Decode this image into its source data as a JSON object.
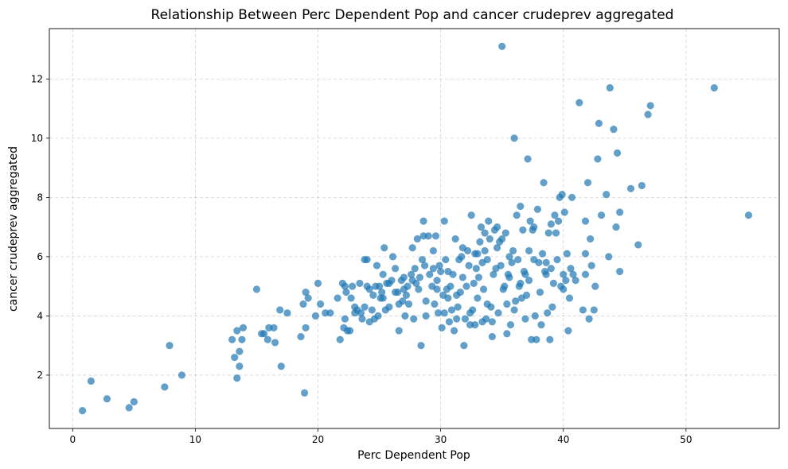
{
  "chart_data": {
    "type": "scatter",
    "title": "Relationship Between Perc Dependent Pop and cancer crudeprev aggregated",
    "xlabel": "Perc Dependent Pop",
    "ylabel": "cancer crudeprev aggregated",
    "xlim": [
      -1.9,
      57.6
    ],
    "ylim": [
      0.2,
      13.7
    ],
    "x_ticks": [
      0,
      10,
      20,
      30,
      40,
      50
    ],
    "y_ticks": [
      2,
      4,
      6,
      8,
      10,
      12
    ],
    "grid": true,
    "color": "#1f77b4",
    "points": [
      [
        0.8,
        0.8
      ],
      [
        1.5,
        1.8
      ],
      [
        2.8,
        1.2
      ],
      [
        4.6,
        0.9
      ],
      [
        5.0,
        1.1
      ],
      [
        7.5,
        1.6
      ],
      [
        7.9,
        3.0
      ],
      [
        8.9,
        2.0
      ],
      [
        13.0,
        3.2
      ],
      [
        13.2,
        2.6
      ],
      [
        13.4,
        3.5
      ],
      [
        13.4,
        1.9
      ],
      [
        13.6,
        2.8
      ],
      [
        13.6,
        2.3
      ],
      [
        13.8,
        3.2
      ],
      [
        13.9,
        3.6
      ],
      [
        15.0,
        4.9
      ],
      [
        15.4,
        3.4
      ],
      [
        15.6,
        3.4
      ],
      [
        15.9,
        3.2
      ],
      [
        16.0,
        3.6
      ],
      [
        16.4,
        3.6
      ],
      [
        16.5,
        3.1
      ],
      [
        16.9,
        4.2
      ],
      [
        17.0,
        2.3
      ],
      [
        17.5,
        4.1
      ],
      [
        18.6,
        3.3
      ],
      [
        18.8,
        4.4
      ],
      [
        18.9,
        1.4
      ],
      [
        19.0,
        3.6
      ],
      [
        19.0,
        4.8
      ],
      [
        19.2,
        4.6
      ],
      [
        19.8,
        4.0
      ],
      [
        20.0,
        5.1
      ],
      [
        20.2,
        4.4
      ],
      [
        20.6,
        4.1
      ],
      [
        21.0,
        4.1
      ],
      [
        21.6,
        4.6
      ],
      [
        21.8,
        3.2
      ],
      [
        22.0,
        5.1
      ],
      [
        22.1,
        3.6
      ],
      [
        22.2,
        3.9
      ],
      [
        22.3,
        4.8
      ],
      [
        22.4,
        3.5
      ],
      [
        22.6,
        3.5
      ],
      [
        22.7,
        4.6
      ],
      [
        22.8,
        5.0
      ],
      [
        23.0,
        4.1
      ],
      [
        23.2,
        4.2
      ],
      [
        23.4,
        5.1
      ],
      [
        23.6,
        3.9
      ],
      [
        23.8,
        4.3
      ],
      [
        23.8,
        5.9
      ],
      [
        24.0,
        5.9
      ],
      [
        24.2,
        3.8
      ],
      [
        24.4,
        4.2
      ],
      [
        24.5,
        4.7
      ],
      [
        24.6,
        3.9
      ],
      [
        24.7,
        5.0
      ],
      [
        24.8,
        5.7
      ],
      [
        24.9,
        4.0
      ],
      [
        25.0,
        5.0
      ],
      [
        25.1,
        4.6
      ],
      [
        25.2,
        4.8
      ],
      [
        25.3,
        5.4
      ],
      [
        25.4,
        6.3
      ],
      [
        25.5,
        4.2
      ],
      [
        25.6,
        5.1
      ],
      [
        25.8,
        4.3
      ],
      [
        26.0,
        5.2
      ],
      [
        26.1,
        6.0
      ],
      [
        26.3,
        4.8
      ],
      [
        26.5,
        4.8
      ],
      [
        26.6,
        3.5
      ],
      [
        26.8,
        5.2
      ],
      [
        26.9,
        4.5
      ],
      [
        27.0,
        5.3
      ],
      [
        27.1,
        4.0
      ],
      [
        27.2,
        4.7
      ],
      [
        27.3,
        5.0
      ],
      [
        27.4,
        4.4
      ],
      [
        27.6,
        5.4
      ],
      [
        27.7,
        6.3
      ],
      [
        27.8,
        3.9
      ],
      [
        27.9,
        5.6
      ],
      [
        28.0,
        5.1
      ],
      [
        28.1,
        6.6
      ],
      [
        28.2,
        4.9
      ],
      [
        28.3,
        5.3
      ],
      [
        28.4,
        3.0
      ],
      [
        28.5,
        5.9
      ],
      [
        28.6,
        6.7
      ],
      [
        28.6,
        7.2
      ],
      [
        28.7,
        5.7
      ],
      [
        28.8,
        4.0
      ],
      [
        29.0,
        6.7
      ],
      [
        29.1,
        5.4
      ],
      [
        29.3,
        5.0
      ],
      [
        29.4,
        6.2
      ],
      [
        29.5,
        4.4
      ],
      [
        29.6,
        6.7
      ],
      [
        29.7,
        4.9
      ],
      [
        29.8,
        4.1
      ],
      [
        29.9,
        5.7
      ],
      [
        30.0,
        5.5
      ],
      [
        30.1,
        3.6
      ],
      [
        30.2,
        4.7
      ],
      [
        30.3,
        4.1
      ],
      [
        30.3,
        7.2
      ],
      [
        30.4,
        5.9
      ],
      [
        30.5,
        4.9
      ],
      [
        30.6,
        4.6
      ],
      [
        30.7,
        3.8
      ],
      [
        30.8,
        5.0
      ],
      [
        30.9,
        4.2
      ],
      [
        31.0,
        5.4
      ],
      [
        31.1,
        3.5
      ],
      [
        31.2,
        6.6
      ],
      [
        31.3,
        3.9
      ],
      [
        31.4,
        4.3
      ],
      [
        31.5,
        5.9
      ],
      [
        31.6,
        4.8
      ],
      [
        31.7,
        6.0
      ],
      [
        31.8,
        5.3
      ],
      [
        31.9,
        3.0
      ],
      [
        32.0,
        3.9
      ],
      [
        32.1,
        5.0
      ],
      [
        32.2,
        6.2
      ],
      [
        32.3,
        5.7
      ],
      [
        32.4,
        3.7
      ],
      [
        32.5,
        7.4
      ],
      [
        32.6,
        4.2
      ],
      [
        32.7,
        5.1
      ],
      [
        32.8,
        6.1
      ],
      [
        32.9,
        5.6
      ],
      [
        33.0,
        4.6
      ],
      [
        33.1,
        5.3
      ],
      [
        33.2,
        6.5
      ],
      [
        33.3,
        7.0
      ],
      [
        33.4,
        5.8
      ],
      [
        33.5,
        4.9
      ],
      [
        33.6,
        6.8
      ],
      [
        33.6,
        6.2
      ],
      [
        33.7,
        3.9
      ],
      [
        33.8,
        5.9
      ],
      [
        33.9,
        7.2
      ],
      [
        34.0,
        6.6
      ],
      [
        34.1,
        4.3
      ],
      [
        34.2,
        3.8
      ],
      [
        34.3,
        5.4
      ],
      [
        34.4,
        6.9
      ],
      [
        34.5,
        5.6
      ],
      [
        34.6,
        7.0
      ],
      [
        34.7,
        4.1
      ],
      [
        34.8,
        6.5
      ],
      [
        34.9,
        5.7
      ],
      [
        35.0,
        13.1
      ],
      [
        35.1,
        4.9
      ],
      [
        35.2,
        5.0
      ],
      [
        35.3,
        6.8
      ],
      [
        35.4,
        4.4
      ],
      [
        35.5,
        5.4
      ],
      [
        35.6,
        6.0
      ],
      [
        35.7,
        3.7
      ],
      [
        35.8,
        5.8
      ],
      [
        35.9,
        6.2
      ],
      [
        36.0,
        10.0
      ],
      [
        36.1,
        4.5
      ],
      [
        36.2,
        7.4
      ],
      [
        36.3,
        5.9
      ],
      [
        36.4,
        5.0
      ],
      [
        36.5,
        7.7
      ],
      [
        36.6,
        4.6
      ],
      [
        36.7,
        6.9
      ],
      [
        36.8,
        5.5
      ],
      [
        36.9,
        3.9
      ],
      [
        37.0,
        4.7
      ],
      [
        37.1,
        9.3
      ],
      [
        37.2,
        5.2
      ],
      [
        37.3,
        7.2
      ],
      [
        37.4,
        3.2
      ],
      [
        37.5,
        6.9
      ],
      [
        37.6,
        5.9
      ],
      [
        37.7,
        4.0
      ],
      [
        37.8,
        3.2
      ],
      [
        37.9,
        7.6
      ],
      [
        38.0,
        5.8
      ],
      [
        38.1,
        4.8
      ],
      [
        38.2,
        3.7
      ],
      [
        38.3,
        6.1
      ],
      [
        38.4,
        8.5
      ],
      [
        38.5,
        5.5
      ],
      [
        38.6,
        5.8
      ],
      [
        38.7,
        4.1
      ],
      [
        38.8,
        6.8
      ],
      [
        38.9,
        3.2
      ],
      [
        39.0,
        7.1
      ],
      [
        39.1,
        4.3
      ],
      [
        39.2,
        5.1
      ],
      [
        39.3,
        7.4
      ],
      [
        39.4,
        6.8
      ],
      [
        39.5,
        5.9
      ],
      [
        39.6,
        7.2
      ],
      [
        39.7,
        8.0
      ],
      [
        39.8,
        5.0
      ],
      [
        39.9,
        8.1
      ],
      [
        40.0,
        5.4
      ],
      [
        40.1,
        7.5
      ],
      [
        40.2,
        5.2
      ],
      [
        40.3,
        6.1
      ],
      [
        40.4,
        3.5
      ],
      [
        40.5,
        4.6
      ],
      [
        40.6,
        5.6
      ],
      [
        40.7,
        8.0
      ],
      [
        40.8,
        5.4
      ],
      [
        41.0,
        5.2
      ],
      [
        41.3,
        11.2
      ],
      [
        41.6,
        4.2
      ],
      [
        41.8,
        7.2
      ],
      [
        41.8,
        6.1
      ],
      [
        42.0,
        8.5
      ],
      [
        42.1,
        3.9
      ],
      [
        42.2,
        6.6
      ],
      [
        42.3,
        5.7
      ],
      [
        42.5,
        4.2
      ],
      [
        42.8,
        9.3
      ],
      [
        42.9,
        10.5
      ],
      [
        43.1,
        7.4
      ],
      [
        43.5,
        8.1
      ],
      [
        43.8,
        11.7
      ],
      [
        44.1,
        10.3
      ],
      [
        44.3,
        7.0
      ],
      [
        44.4,
        9.5
      ],
      [
        44.6,
        7.5
      ],
      [
        44.6,
        5.5
      ],
      [
        45.5,
        8.3
      ],
      [
        46.1,
        6.4
      ],
      [
        46.4,
        8.4
      ],
      [
        46.9,
        10.8
      ],
      [
        47.1,
        11.1
      ],
      [
        52.3,
        11.7
      ],
      [
        55.1,
        7.4
      ],
      [
        27.0,
        4.9
      ],
      [
        26.3,
        5.6
      ],
      [
        29.7,
        5.2
      ],
      [
        31.3,
        4.7
      ],
      [
        33.8,
        4.4
      ],
      [
        35.6,
        5.3
      ],
      [
        37.2,
        6.2
      ],
      [
        38.6,
        5.4
      ],
      [
        40.0,
        4.9
      ],
      [
        41.8,
        5.4
      ],
      [
        43.7,
        6.0
      ],
      [
        42.6,
        5.0
      ],
      [
        36.0,
        4.2
      ],
      [
        30.6,
        5.5
      ],
      [
        32.4,
        4.1
      ],
      [
        34.2,
        3.3
      ],
      [
        28.8,
        4.5
      ],
      [
        25.8,
        5.1
      ],
      [
        24.2,
        4.9
      ],
      [
        23.0,
        4.3
      ],
      [
        22.2,
        5.0
      ],
      [
        36.9,
        5.4
      ],
      [
        39.0,
        5.6
      ],
      [
        35.0,
        6.6
      ],
      [
        33.0,
        6.1
      ],
      [
        31.8,
        6.3
      ],
      [
        37.6,
        7.0
      ],
      [
        34.6,
        6.3
      ],
      [
        36.5,
        5.1
      ],
      [
        29.4,
        5.6
      ],
      [
        27.7,
        5.2
      ],
      [
        26.6,
        4.4
      ],
      [
        25.3,
        4.6
      ],
      [
        24.0,
        5.0
      ],
      [
        23.5,
        4.1
      ],
      [
        33.4,
        3.8
      ],
      [
        35.4,
        3.4
      ],
      [
        32.8,
        3.7
      ]
    ]
  }
}
